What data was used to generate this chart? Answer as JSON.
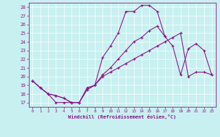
{
  "bg_color": "#c8f0f0",
  "line_color": "#881188",
  "xlim": [
    -0.5,
    23.5
  ],
  "ylim": [
    16.5,
    28.5
  ],
  "xticks": [
    0,
    1,
    2,
    3,
    4,
    5,
    6,
    7,
    8,
    9,
    10,
    11,
    12,
    13,
    14,
    15,
    16,
    17,
    18,
    19,
    20,
    21,
    22,
    23
  ],
  "yticks": [
    17,
    18,
    19,
    20,
    21,
    22,
    23,
    24,
    25,
    26,
    27,
    28
  ],
  "xlabel": "Windchill (Refroidissement éolien,°C)",
  "series1": [
    19.5,
    18.7,
    18.0,
    17.0,
    17.0,
    17.0,
    17.0,
    18.7,
    19.0,
    22.2,
    23.5,
    25.0,
    27.5,
    27.5,
    28.2,
    28.2,
    27.5,
    24.6,
    null,
    null,
    null,
    null,
    null,
    null
  ],
  "series2": [
    19.5,
    18.7,
    18.0,
    17.8,
    17.5,
    17.0,
    17.0,
    18.5,
    19.0,
    20.2,
    21.0,
    22.0,
    23.0,
    24.0,
    24.5,
    25.3,
    25.8,
    24.6,
    23.5,
    20.2,
    23.2,
    23.8,
    23.0,
    20.2
  ],
  "series3": [
    19.5,
    18.7,
    18.0,
    17.8,
    17.5,
    17.0,
    17.0,
    18.5,
    19.0,
    20.0,
    20.5,
    21.0,
    21.5,
    22.0,
    22.5,
    23.0,
    23.5,
    24.0,
    24.5,
    25.0,
    20.0,
    20.5,
    20.5,
    20.2
  ]
}
